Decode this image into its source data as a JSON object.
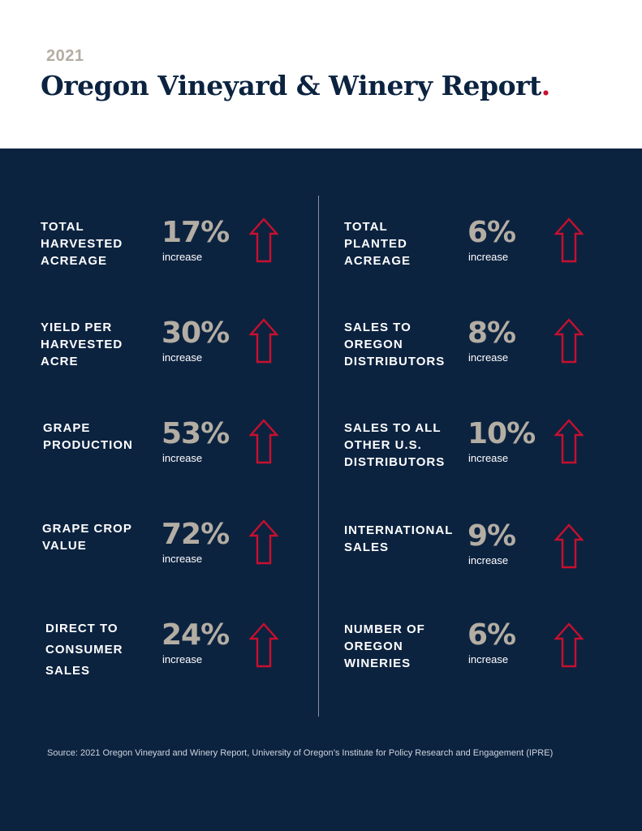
{
  "header": {
    "year": "2021",
    "title": "Oregon Vineyard & Winery Report",
    "title_dot": "."
  },
  "colors": {
    "navy": "#0c2340",
    "stat_gray": "#b3ada3",
    "arrow_red": "#c8102e",
    "white": "#ffffff"
  },
  "stats_left": [
    {
      "label_lines": [
        "TOTAL",
        "HARVESTED",
        "ACREAGE"
      ],
      "percent": "17%",
      "change": "increase",
      "direction": "up",
      "icon": "up-arrow-icon"
    },
    {
      "label_lines": [
        "YIELD PER",
        "HARVESTED",
        "ACRE"
      ],
      "percent": "30%",
      "change": "increase",
      "direction": "up",
      "icon": "up-arrow-icon"
    },
    {
      "label_lines": [
        "GRAPE",
        "PRODUCTION"
      ],
      "percent": "53%",
      "change": "increase",
      "direction": "up",
      "icon": "up-arrow-icon"
    },
    {
      "label_lines": [
        "GRAPE CROP",
        "VALUE"
      ],
      "percent": "72%",
      "change": "increase",
      "direction": "up",
      "icon": "up-arrow-icon"
    },
    {
      "label_lines": [
        "DIRECT TO",
        "CONSUMER",
        "SALES"
      ],
      "percent": "24%",
      "change": "increase",
      "direction": "up",
      "icon": "up-arrow-icon"
    }
  ],
  "stats_right": [
    {
      "label_lines": [
        "TOTAL",
        "PLANTED",
        "ACREAGE"
      ],
      "percent": "6%",
      "change": "increase",
      "direction": "up",
      "icon": "up-arrow-icon"
    },
    {
      "label_lines": [
        "SALES TO",
        "OREGON",
        "DISTRIBUTORS"
      ],
      "percent": "8%",
      "change": "increase",
      "direction": "up",
      "icon": "up-arrow-icon"
    },
    {
      "label_lines": [
        "SALES TO ALL",
        "OTHER U.S.",
        "DISTRIBUTORS"
      ],
      "percent": "10%",
      "change": "increase",
      "direction": "up",
      "icon": "up-arrow-icon"
    },
    {
      "label_lines": [
        "INTERNATIONAL",
        "SALES"
      ],
      "percent": "9%",
      "change": "increase",
      "direction": "up",
      "icon": "up-arrow-icon"
    },
    {
      "label_lines": [
        "NUMBER OF",
        "OREGON",
        "WINERIES"
      ],
      "percent": "6%",
      "change": "increase",
      "direction": "up",
      "icon": "up-arrow-icon"
    }
  ],
  "footer": {
    "source": "Source: 2021 Oregon Vineyard and Winery Report, University of Oregon’s Institute for Policy Research and Engagement (IPRE)"
  }
}
